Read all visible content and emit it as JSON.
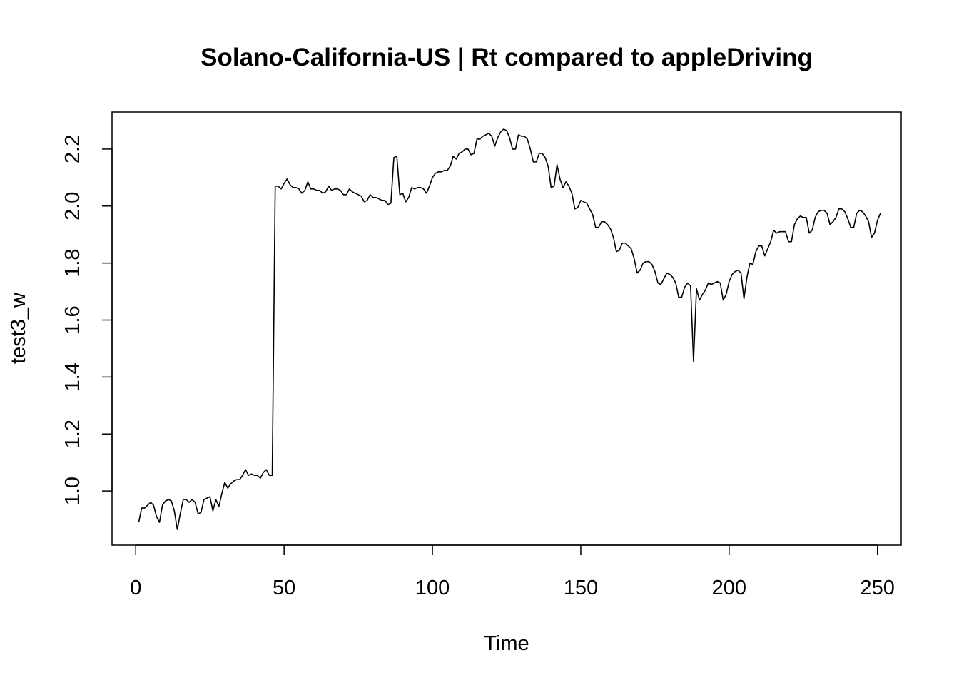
{
  "chart_data": {
    "type": "line",
    "title": "Solano-California-US | Rt compared to appleDriving",
    "xlabel": "Time",
    "ylabel": "test3_w",
    "xlim": [
      -8,
      258
    ],
    "ylim": [
      0.81,
      2.33
    ],
    "x_ticks": [
      0,
      50,
      100,
      150,
      200,
      250
    ],
    "y_ticks": [
      1.0,
      1.2,
      1.4,
      1.6,
      1.8,
      2.0,
      2.2
    ],
    "x_tick_labels": [
      "0",
      "50",
      "100",
      "150",
      "200",
      "250"
    ],
    "y_tick_labels": [
      "1.0",
      "1.2",
      "1.4",
      "1.6",
      "1.8",
      "2.0",
      "2.2"
    ],
    "grid": false,
    "legend": "none",
    "line_color": "#000000",
    "series": [
      {
        "x_start": 1,
        "values": [
          0.89,
          0.94,
          0.94,
          0.95,
          0.96,
          0.95,
          0.91,
          0.89,
          0.95,
          0.965,
          0.97,
          0.965,
          0.93,
          0.865,
          0.92,
          0.97,
          0.97,
          0.96,
          0.97,
          0.96,
          0.92,
          0.925,
          0.97,
          0.975,
          0.98,
          0.93,
          0.97,
          0.945,
          0.99,
          1.03,
          1.01,
          1.025,
          1.035,
          1.04,
          1.04,
          1.055,
          1.075,
          1.055,
          1.06,
          1.055,
          1.055,
          1.045,
          1.065,
          1.075,
          1.055,
          1.055,
          2.07,
          2.07,
          2.06,
          2.08,
          2.095,
          2.075,
          2.065,
          2.065,
          2.06,
          2.045,
          2.055,
          2.085,
          2.06,
          2.06,
          2.055,
          2.055,
          2.045,
          2.05,
          2.07,
          2.055,
          2.06,
          2.06,
          2.055,
          2.04,
          2.04,
          2.06,
          2.05,
          2.045,
          2.04,
          2.035,
          2.015,
          2.02,
          2.04,
          2.03,
          2.03,
          2.025,
          2.02,
          2.02,
          2.005,
          2.01,
          2.17,
          2.175,
          2.04,
          2.045,
          2.015,
          2.03,
          2.065,
          2.06,
          2.065,
          2.065,
          2.06,
          2.045,
          2.07,
          2.1,
          2.115,
          2.12,
          2.12,
          2.125,
          2.125,
          2.14,
          2.175,
          2.165,
          2.185,
          2.19,
          2.2,
          2.2,
          2.18,
          2.185,
          2.235,
          2.235,
          2.245,
          2.25,
          2.255,
          2.245,
          2.21,
          2.24,
          2.26,
          2.27,
          2.265,
          2.24,
          2.2,
          2.2,
          2.25,
          2.245,
          2.245,
          2.235,
          2.2,
          2.155,
          2.155,
          2.185,
          2.185,
          2.17,
          2.14,
          2.065,
          2.07,
          2.145,
          2.095,
          2.065,
          2.085,
          2.07,
          2.045,
          1.99,
          1.995,
          2.02,
          2.015,
          2.01,
          1.99,
          1.97,
          1.925,
          1.925,
          1.945,
          1.945,
          1.935,
          1.92,
          1.89,
          1.84,
          1.845,
          1.87,
          1.87,
          1.86,
          1.85,
          1.815,
          1.765,
          1.775,
          1.8,
          1.805,
          1.805,
          1.795,
          1.77,
          1.73,
          1.725,
          1.745,
          1.765,
          1.76,
          1.75,
          1.73,
          1.68,
          1.68,
          1.715,
          1.73,
          1.72,
          1.455,
          1.71,
          1.67,
          1.69,
          1.705,
          1.73,
          1.725,
          1.73,
          1.735,
          1.73,
          1.67,
          1.69,
          1.735,
          1.76,
          1.77,
          1.775,
          1.765,
          1.675,
          1.75,
          1.8,
          1.795,
          1.84,
          1.86,
          1.86,
          1.825,
          1.85,
          1.875,
          1.915,
          1.905,
          1.91,
          1.91,
          1.91,
          1.875,
          1.875,
          1.935,
          1.955,
          1.965,
          1.96,
          1.96,
          1.905,
          1.915,
          1.96,
          1.98,
          1.985,
          1.985,
          1.975,
          1.935,
          1.945,
          1.96,
          1.99,
          1.99,
          1.98,
          1.955,
          1.925,
          1.925,
          1.975,
          1.985,
          1.98,
          1.965,
          1.945,
          1.89,
          1.905,
          1.95,
          1.975
        ]
      }
    ]
  }
}
